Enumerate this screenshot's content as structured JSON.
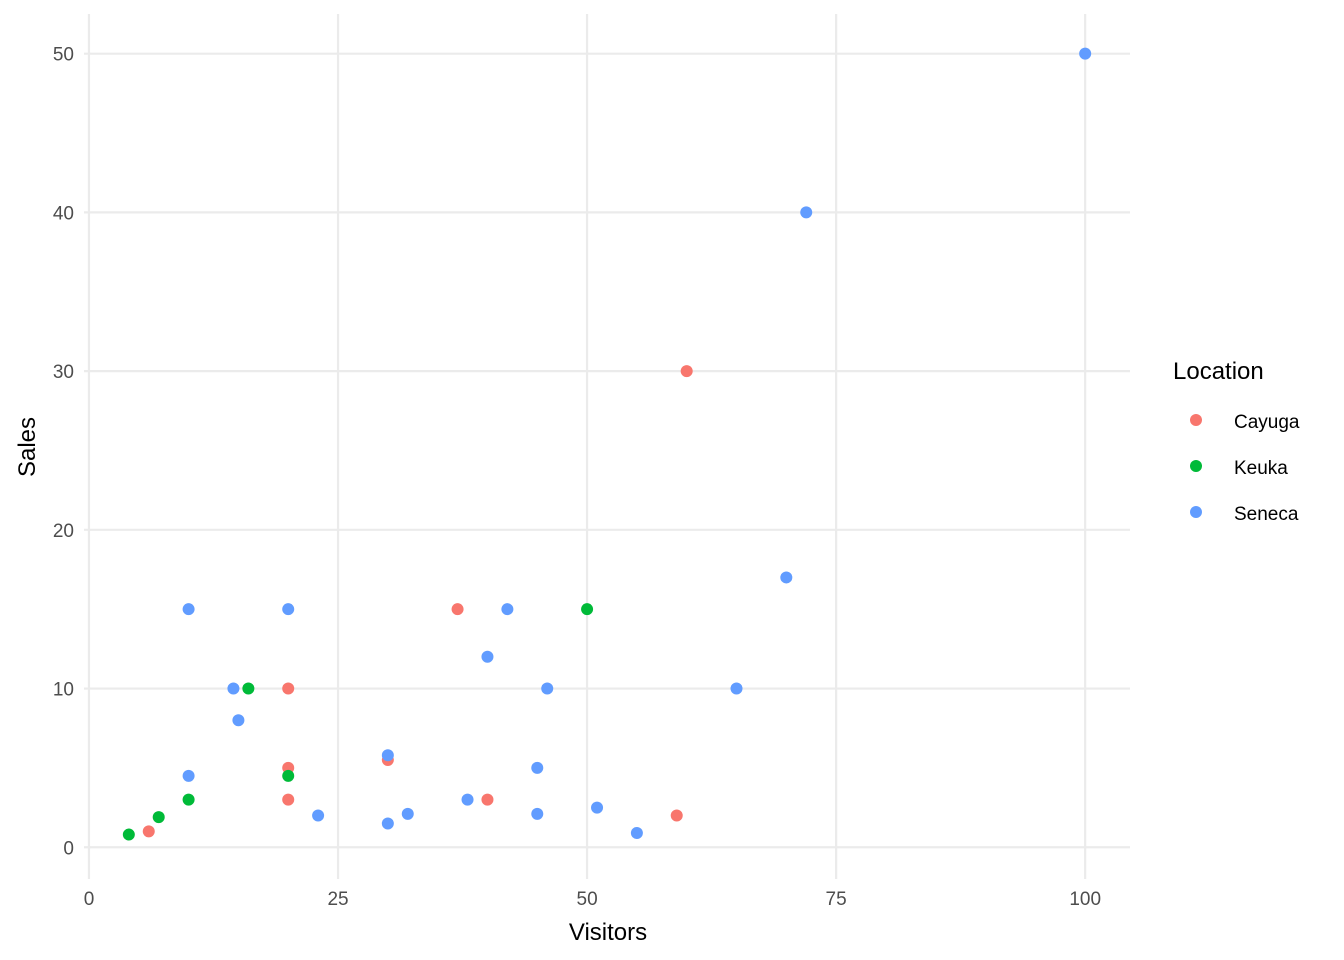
{
  "chart_data": {
    "type": "scatter",
    "title": "",
    "xlabel": "Visitors",
    "ylabel": "Sales",
    "xlim": [
      -0.5,
      104.5
    ],
    "ylim": [
      -2,
      52.5
    ],
    "x_ticks": [
      0,
      25,
      50,
      75,
      100
    ],
    "y_ticks": [
      0,
      10,
      20,
      30,
      40,
      50
    ],
    "x_tick_labels": [
      "0",
      "25",
      "50",
      "75",
      "100"
    ],
    "y_tick_labels": [
      "0",
      "10",
      "20",
      "30",
      "40",
      "50"
    ],
    "grid": true,
    "legend": {
      "title": "Location",
      "placement": "right"
    },
    "series": [
      {
        "name": "Cayuga",
        "color": "#F8766D",
        "points": [
          [
            6,
            1
          ],
          [
            20,
            3
          ],
          [
            20,
            5
          ],
          [
            20,
            10
          ],
          [
            30,
            5.5
          ],
          [
            37,
            15
          ],
          [
            40,
            3
          ],
          [
            59,
            2
          ],
          [
            60,
            30
          ]
        ]
      },
      {
        "name": "Keuka",
        "color": "#00BA38",
        "points": [
          [
            4,
            0.8
          ],
          [
            7,
            1.9
          ],
          [
            10,
            3
          ],
          [
            16,
            10
          ],
          [
            20,
            4.5
          ],
          [
            50,
            15
          ]
        ]
      },
      {
        "name": "Seneca",
        "color": "#619CFF",
        "points": [
          [
            10,
            4.5
          ],
          [
            10,
            15
          ],
          [
            14.5,
            10
          ],
          [
            15,
            8
          ],
          [
            20,
            15
          ],
          [
            23,
            2
          ],
          [
            30,
            1.5
          ],
          [
            30,
            5.8
          ],
          [
            32,
            2.1
          ],
          [
            38,
            3
          ],
          [
            40,
            12
          ],
          [
            42,
            15
          ],
          [
            45,
            2.1
          ],
          [
            45,
            5
          ],
          [
            46,
            10
          ],
          [
            51,
            2.5
          ],
          [
            55,
            0.9
          ],
          [
            65,
            10
          ],
          [
            70,
            17
          ],
          [
            72,
            40
          ],
          [
            100,
            50
          ]
        ]
      }
    ]
  }
}
